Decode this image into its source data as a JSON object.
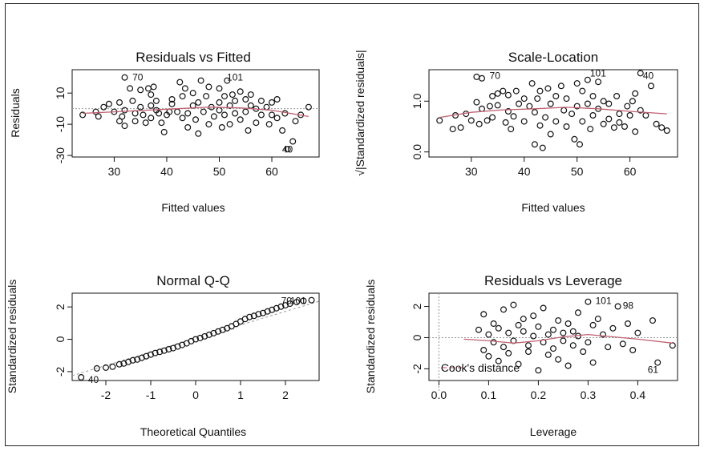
{
  "colors": {
    "frame": "#222222",
    "points": "#111111",
    "smooth": "#c06070",
    "reference": "#999999",
    "cooks": "#d06070"
  },
  "chart_data": [
    {
      "id": "rvf",
      "type": "scatter",
      "title": "Residuals vs Fitted",
      "xlabel": "Fitted values",
      "ylabel": "Residuals",
      "xlim": [
        22,
        69
      ],
      "ylim": [
        -31,
        25
      ],
      "xticks": [
        30,
        40,
        50,
        60
      ],
      "yticks": [
        -30,
        -10,
        10
      ],
      "reference_line": 0,
      "points": [
        [
          24,
          -4
        ],
        [
          26.5,
          -2
        ],
        [
          27,
          -5
        ],
        [
          28,
          1
        ],
        [
          29,
          3
        ],
        [
          30,
          -2
        ],
        [
          31,
          -8
        ],
        [
          31,
          4
        ],
        [
          31.5,
          -5
        ],
        [
          32,
          -1
        ],
        [
          32,
          -11
        ],
        [
          32,
          20
        ],
        [
          33,
          13
        ],
        [
          33.5,
          5
        ],
        [
          34,
          -8
        ],
        [
          34,
          -3
        ],
        [
          35,
          1
        ],
        [
          35,
          12
        ],
        [
          35.5,
          -4
        ],
        [
          36,
          -9
        ],
        [
          36.5,
          13
        ],
        [
          37,
          -6
        ],
        [
          37,
          2
        ],
        [
          37,
          9
        ],
        [
          37.5,
          14
        ],
        [
          38,
          -1
        ],
        [
          38,
          5
        ],
        [
          38.5,
          -3
        ],
        [
          39,
          -9
        ],
        [
          39.5,
          -15
        ],
        [
          40,
          -4
        ],
        [
          40.5,
          -2
        ],
        [
          41,
          6
        ],
        [
          41,
          3
        ],
        [
          42,
          -2
        ],
        [
          42.5,
          17
        ],
        [
          43,
          -6
        ],
        [
          43,
          8
        ],
        [
          43.5,
          13
        ],
        [
          44,
          -12
        ],
        [
          44,
          -3
        ],
        [
          45,
          2
        ],
        [
          45,
          10
        ],
        [
          45.5,
          -7
        ],
        [
          46,
          4
        ],
        [
          46,
          -16
        ],
        [
          46.5,
          18
        ],
        [
          47,
          -2
        ],
        [
          47.5,
          8
        ],
        [
          48,
          14
        ],
        [
          48,
          -10
        ],
        [
          48.5,
          1
        ],
        [
          49,
          -5
        ],
        [
          50,
          13
        ],
        [
          50,
          4
        ],
        [
          50,
          -1
        ],
        [
          50.5,
          -12
        ],
        [
          51,
          -4
        ],
        [
          51,
          8
        ],
        [
          51.5,
          18
        ],
        [
          52,
          -10
        ],
        [
          52,
          2
        ],
        [
          52.5,
          9
        ],
        [
          53,
          -3
        ],
        [
          53,
          5
        ],
        [
          54,
          11
        ],
        [
          54,
          -7
        ],
        [
          55,
          -2
        ],
        [
          55,
          6
        ],
        [
          55.5,
          -14
        ],
        [
          56,
          2
        ],
        [
          56,
          9
        ],
        [
          57,
          0
        ],
        [
          57,
          -9
        ],
        [
          58,
          -4
        ],
        [
          58,
          5
        ],
        [
          59,
          1
        ],
        [
          59.5,
          -10
        ],
        [
          60,
          4
        ],
        [
          60,
          -4
        ],
        [
          61,
          6
        ],
        [
          61,
          -6
        ],
        [
          62,
          -14
        ],
        [
          62.5,
          -3
        ],
        [
          63,
          -26
        ],
        [
          64,
          -21
        ],
        [
          64.5,
          -8
        ],
        [
          65.5,
          -4
        ],
        [
          67,
          1
        ]
      ],
      "smooth": [
        [
          24,
          -3
        ],
        [
          30,
          -2
        ],
        [
          36,
          -1
        ],
        [
          42,
          0
        ],
        [
          48,
          1
        ],
        [
          54,
          0.5
        ],
        [
          60,
          -1
        ],
        [
          67,
          -5
        ]
      ],
      "labels": [
        {
          "text": "70",
          "x": 33,
          "y": 20
        },
        {
          "text": "101",
          "x": 51,
          "y": 20
        },
        {
          "text": "40",
          "x": 61.5,
          "y": -26
        }
      ]
    },
    {
      "id": "sl",
      "type": "scatter",
      "title": "Scale-Location",
      "xlabel": "Fitted values",
      "ylabel": "√|Standardized residuals|",
      "xlim": [
        22,
        69
      ],
      "ylim": [
        -0.1,
        1.62
      ],
      "xticks": [
        30,
        40,
        50,
        60
      ],
      "yticks": [
        0.0,
        1.0
      ],
      "ytick_labels": [
        "0.0",
        "1.0"
      ],
      "points": [
        [
          24,
          0.62
        ],
        [
          26.5,
          0.45
        ],
        [
          27,
          0.72
        ],
        [
          28,
          0.48
        ],
        [
          29,
          0.75
        ],
        [
          30,
          0.62
        ],
        [
          31,
          0.98
        ],
        [
          31,
          1.48
        ],
        [
          31.5,
          0.55
        ],
        [
          32,
          0.85
        ],
        [
          32,
          1.45
        ],
        [
          33,
          0.62
        ],
        [
          33.5,
          0.9
        ],
        [
          34,
          1.1
        ],
        [
          34,
          0.68
        ],
        [
          35,
          1.15
        ],
        [
          35,
          0.92
        ],
        [
          36,
          1.2
        ],
        [
          36.5,
          0.58
        ],
        [
          37,
          1.12
        ],
        [
          37,
          0.8
        ],
        [
          37.5,
          0.45
        ],
        [
          38,
          0.7
        ],
        [
          38.5,
          1.2
        ],
        [
          39,
          0.95
        ],
        [
          40,
          0.6
        ],
        [
          40,
          1.05
        ],
        [
          41,
          0.9
        ],
        [
          41.5,
          1.35
        ],
        [
          42,
          0.15
        ],
        [
          42,
          0.78
        ],
        [
          42.5,
          1.05
        ],
        [
          43,
          0.52
        ],
        [
          43,
          1.2
        ],
        [
          43.5,
          0.08
        ],
        [
          44,
          0.68
        ],
        [
          44.5,
          1.25
        ],
        [
          45,
          0.95
        ],
        [
          45,
          0.35
        ],
        [
          46,
          1.1
        ],
        [
          46,
          0.6
        ],
        [
          47,
          1.3
        ],
        [
          47.5,
          0.82
        ],
        [
          48,
          0.5
        ],
        [
          48,
          1.05
        ],
        [
          49,
          0.75
        ],
        [
          49.5,
          0.25
        ],
        [
          50,
          1.35
        ],
        [
          50,
          0.9
        ],
        [
          50.5,
          0.15
        ],
        [
          51,
          1.2
        ],
        [
          51,
          0.6
        ],
        [
          52,
          1.42
        ],
        [
          52,
          0.95
        ],
        [
          52.5,
          0.45
        ],
        [
          53,
          1.1
        ],
        [
          53,
          0.72
        ],
        [
          54,
          1.38
        ],
        [
          54,
          0.85
        ],
        [
          55,
          0.55
        ],
        [
          55,
          1.0
        ],
        [
          56,
          0.65
        ],
        [
          56,
          0.95
        ],
        [
          57,
          0.48
        ],
        [
          57.5,
          1.1
        ],
        [
          58,
          0.58
        ],
        [
          58,
          0.75
        ],
        [
          59,
          0.5
        ],
        [
          59.5,
          0.9
        ],
        [
          60,
          0.72
        ],
        [
          60.5,
          1.0
        ],
        [
          61,
          1.15
        ],
        [
          61,
          0.4
        ],
        [
          62,
          0.82
        ],
        [
          62,
          1.55
        ],
        [
          63,
          0.72
        ],
        [
          64,
          1.3
        ],
        [
          65,
          0.55
        ],
        [
          66,
          0.48
        ],
        [
          67,
          0.42
        ]
      ],
      "smooth": [
        [
          24,
          0.68
        ],
        [
          30,
          0.78
        ],
        [
          36,
          0.83
        ],
        [
          42,
          0.85
        ],
        [
          48,
          0.88
        ],
        [
          54,
          0.85
        ],
        [
          60,
          0.8
        ],
        [
          67,
          0.75
        ]
      ],
      "labels": [
        {
          "text": "70",
          "x": 33,
          "y": 1.5
        },
        {
          "text": "101",
          "x": 52,
          "y": 1.55
        },
        {
          "text": "40",
          "x": 62,
          "y": 1.5
        }
      ]
    },
    {
      "id": "qq",
      "type": "scatter",
      "title": "Normal Q-Q",
      "xlabel": "Theoretical Quantiles",
      "ylabel": "Standardized residuals",
      "xlim": [
        -2.75,
        2.75
      ],
      "ylim": [
        -2.55,
        2.85
      ],
      "xticks": [
        -2,
        -1,
        0,
        1,
        2
      ],
      "yticks": [
        -2,
        0,
        2
      ],
      "reference_line_points": [
        [
          -2.75,
          -2.25
        ],
        [
          2.75,
          2.35
        ]
      ],
      "points": [
        [
          -2.55,
          -2.35
        ],
        [
          -2.2,
          -1.8
        ],
        [
          -2.0,
          -1.75
        ],
        [
          -1.85,
          -1.7
        ],
        [
          -1.7,
          -1.55
        ],
        [
          -1.6,
          -1.5
        ],
        [
          -1.5,
          -1.4
        ],
        [
          -1.4,
          -1.3
        ],
        [
          -1.3,
          -1.25
        ],
        [
          -1.2,
          -1.15
        ],
        [
          -1.1,
          -1.05
        ],
        [
          -1.0,
          -0.95
        ],
        [
          -0.9,
          -0.85
        ],
        [
          -0.8,
          -0.78
        ],
        [
          -0.7,
          -0.7
        ],
        [
          -0.6,
          -0.62
        ],
        [
          -0.5,
          -0.55
        ],
        [
          -0.4,
          -0.45
        ],
        [
          -0.3,
          -0.35
        ],
        [
          -0.2,
          -0.25
        ],
        [
          -0.1,
          -0.12
        ],
        [
          0.0,
          0.0
        ],
        [
          0.1,
          0.08
        ],
        [
          0.2,
          0.18
        ],
        [
          0.3,
          0.28
        ],
        [
          0.4,
          0.38
        ],
        [
          0.5,
          0.48
        ],
        [
          0.6,
          0.58
        ],
        [
          0.7,
          0.68
        ],
        [
          0.8,
          0.8
        ],
        [
          0.9,
          0.95
        ],
        [
          1.0,
          1.1
        ],
        [
          1.1,
          1.25
        ],
        [
          1.2,
          1.38
        ],
        [
          1.3,
          1.45
        ],
        [
          1.4,
          1.55
        ],
        [
          1.5,
          1.62
        ],
        [
          1.6,
          1.72
        ],
        [
          1.7,
          1.82
        ],
        [
          1.8,
          1.92
        ],
        [
          1.9,
          2.02
        ],
        [
          2.0,
          2.1
        ],
        [
          2.1,
          2.2
        ],
        [
          2.25,
          2.3
        ],
        [
          2.4,
          2.38
        ],
        [
          2.58,
          2.42
        ]
      ],
      "labels": [
        {
          "text": "70",
          "x": 1.85,
          "y": 2.38
        },
        {
          "text": "101",
          "x": 2.05,
          "y": 2.38
        },
        {
          "text": "40",
          "x": -2.45,
          "y": -2.5
        }
      ]
    },
    {
      "id": "rvl",
      "type": "scatter",
      "title": "Residuals vs Leverage",
      "xlabel": "Leverage",
      "ylabel": "Standardized residuals",
      "xlim": [
        -0.02,
        0.48
      ],
      "ylim": [
        -2.75,
        2.85
      ],
      "xticks": [
        0.0,
        0.1,
        0.2,
        0.3,
        0.4
      ],
      "xtick_labels": [
        "0.0",
        "0.1",
        "0.2",
        "0.3",
        "0.4"
      ],
      "yticks": [
        -2,
        0,
        2
      ],
      "reference_lines": {
        "x": 0,
        "y": 0
      },
      "legend": {
        "label": "Cook's distance",
        "placement": "bottom-left"
      },
      "points": [
        [
          0.08,
          0.5
        ],
        [
          0.09,
          -0.8
        ],
        [
          0.09,
          1.5
        ],
        [
          0.1,
          -1.2
        ],
        [
          0.1,
          0.2
        ],
        [
          0.11,
          0.9
        ],
        [
          0.11,
          -0.3
        ],
        [
          0.12,
          -1.5
        ],
        [
          0.12,
          0.6
        ],
        [
          0.13,
          1.8
        ],
        [
          0.13,
          -0.6
        ],
        [
          0.14,
          0.3
        ],
        [
          0.14,
          -1.0
        ],
        [
          0.15,
          2.1
        ],
        [
          0.15,
          -0.2
        ],
        [
          0.16,
          0.8
        ],
        [
          0.16,
          -1.7
        ],
        [
          0.17,
          0.4
        ],
        [
          0.17,
          1.2
        ],
        [
          0.18,
          -0.5
        ],
        [
          0.18,
          -0.9
        ],
        [
          0.19,
          0.1
        ],
        [
          0.19,
          1.4
        ],
        [
          0.2,
          -2.1
        ],
        [
          0.2,
          0.7
        ],
        [
          0.21,
          -0.3
        ],
        [
          0.21,
          1.9
        ],
        [
          0.22,
          0.2
        ],
        [
          0.22,
          -1.1
        ],
        [
          0.23,
          0.5
        ],
        [
          0.23,
          -0.7
        ],
        [
          0.24,
          1.1
        ],
        [
          0.24,
          -1.4
        ],
        [
          0.25,
          0.3
        ],
        [
          0.25,
          -0.2
        ],
        [
          0.26,
          0.9
        ],
        [
          0.26,
          -1.8
        ],
        [
          0.27,
          0.4
        ],
        [
          0.27,
          -0.5
        ],
        [
          0.28,
          1.6
        ],
        [
          0.28,
          0.1
        ],
        [
          0.29,
          -0.9
        ],
        [
          0.3,
          2.3
        ],
        [
          0.3,
          -0.3
        ],
        [
          0.31,
          0.8
        ],
        [
          0.31,
          -1.6
        ],
        [
          0.32,
          1.2
        ],
        [
          0.33,
          0.2
        ],
        [
          0.34,
          -0.6
        ],
        [
          0.35,
          0.6
        ],
        [
          0.36,
          2.0
        ],
        [
          0.37,
          -0.4
        ],
        [
          0.38,
          0.9
        ],
        [
          0.39,
          -0.8
        ],
        [
          0.4,
          0.3
        ],
        [
          0.43,
          1.1
        ],
        [
          0.44,
          -1.6
        ],
        [
          0.47,
          -0.5
        ]
      ],
      "smooth": [
        [
          0.05,
          -0.1
        ],
        [
          0.1,
          -0.2
        ],
        [
          0.15,
          -0.35
        ],
        [
          0.2,
          -0.2
        ],
        [
          0.25,
          0.05
        ],
        [
          0.3,
          0.2
        ],
        [
          0.35,
          0.05
        ],
        [
          0.4,
          -0.1
        ],
        [
          0.47,
          -0.35
        ]
      ],
      "labels": [
        {
          "text": "101",
          "x": 0.31,
          "y": 2.35
        },
        {
          "text": "98",
          "x": 0.365,
          "y": 2.05
        },
        {
          "text": "61",
          "x": 0.415,
          "y": -2.05
        }
      ]
    }
  ]
}
